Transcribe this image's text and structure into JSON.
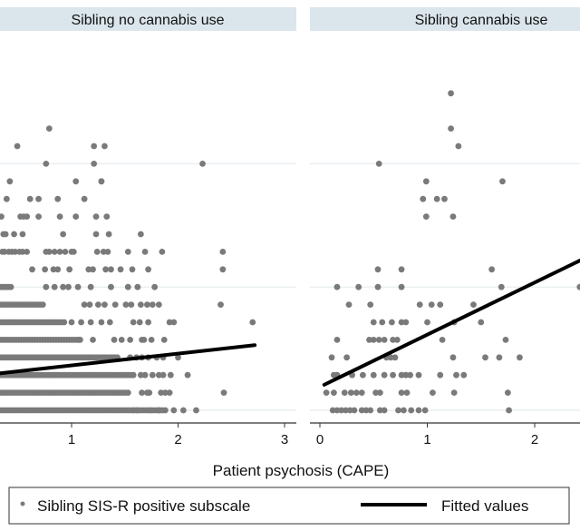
{
  "chart_data": {
    "type": "scatter",
    "xlabel": "Patient psychosis (CAPE)",
    "ylabel": "",
    "y_units_note": "y values are discrete score levels (row index, 0 = bottom gridline); y-axis tick labels are not visible",
    "grid": "horizontal",
    "legend": {
      "placement": "bottom",
      "entries": [
        {
          "label": "Sibling SIS-R positive subscale",
          "marker": "point",
          "color": "#7a7a7a"
        },
        {
          "label": "Fitted values",
          "marker": "line",
          "color": "#000000"
        }
      ]
    },
    "colors": {
      "points": "#7a7a7a",
      "fit": "#000000",
      "strip_bg": "#dbe5ec",
      "grid": "#e4ecef",
      "axis": "#333333"
    },
    "y_gridlines": [
      0,
      7,
      14
    ],
    "panels": [
      {
        "title": "Sibling no cannabis use",
        "xlim": [
          0.33,
          3.05
        ],
        "ylim": [
          -0.6,
          16.5
        ],
        "xticks": [
          1,
          2,
          3
        ],
        "xtick_labels": [
          "1",
          "2",
          "3"
        ],
        "fit": {
          "x": [
            0.33,
            2.72
          ],
          "y": [
            2.1,
            3.7
          ]
        },
        "dense_rows": [
          {
            "y": 0,
            "x_from": 0.33,
            "x_to": 1.9
          },
          {
            "y": 1,
            "x_from": 0.33,
            "x_to": 1.55
          },
          {
            "y": 2,
            "x_from": 0.33,
            "x_to": 1.6
          },
          {
            "y": 3,
            "x_from": 0.33,
            "x_to": 1.45
          },
          {
            "y": 4,
            "x_from": 0.33,
            "x_to": 1.1
          },
          {
            "y": 5,
            "x_from": 0.33,
            "x_to": 0.95
          },
          {
            "y": 6,
            "x_from": 0.33,
            "x_to": 0.75
          },
          {
            "y": 7,
            "x_from": 0.33,
            "x_to": 0.45
          }
        ],
        "points": [
          [
            2.05,
            0
          ],
          [
            2.17,
            0
          ],
          [
            1.62,
            0
          ],
          [
            1.82,
            0
          ],
          [
            1.73,
            0
          ],
          [
            1.96,
            0
          ],
          [
            1.58,
            0
          ],
          [
            2.43,
            1
          ],
          [
            1.73,
            1
          ],
          [
            1.84,
            1
          ],
          [
            1.92,
            1
          ],
          [
            1.88,
            1
          ],
          [
            1.66,
            1
          ],
          [
            1.71,
            1
          ],
          [
            1.93,
            2
          ],
          [
            1.86,
            2
          ],
          [
            1.82,
            2
          ],
          [
            1.76,
            2
          ],
          [
            1.69,
            2
          ],
          [
            1.65,
            2
          ],
          [
            2.09,
            2
          ],
          [
            2.0,
            3
          ],
          [
            1.72,
            3
          ],
          [
            1.8,
            3
          ],
          [
            1.86,
            3
          ],
          [
            1.55,
            3
          ],
          [
            1.61,
            3
          ],
          [
            1.66,
            3
          ],
          [
            1.07,
            4
          ],
          [
            1.2,
            4
          ],
          [
            1.4,
            4
          ],
          [
            1.47,
            4
          ],
          [
            1.55,
            4
          ],
          [
            1.66,
            4
          ],
          [
            1.68,
            4
          ],
          [
            1.75,
            4
          ],
          [
            1.87,
            4
          ],
          [
            1.58,
            5
          ],
          [
            1.64,
            5
          ],
          [
            1.72,
            5
          ],
          [
            1.28,
            5
          ],
          [
            1.36,
            5
          ],
          [
            1.18,
            5
          ],
          [
            1.09,
            5
          ],
          [
            1.0,
            5
          ],
          [
            1.96,
            5
          ],
          [
            1.92,
            5
          ],
          [
            2.7,
            5
          ],
          [
            1.12,
            6
          ],
          [
            1.17,
            6
          ],
          [
            1.25,
            6
          ],
          [
            1.31,
            6
          ],
          [
            1.41,
            6
          ],
          [
            1.51,
            6
          ],
          [
            1.56,
            6
          ],
          [
            1.65,
            6
          ],
          [
            1.71,
            6
          ],
          [
            1.76,
            6
          ],
          [
            1.82,
            6
          ],
          [
            2.4,
            6
          ],
          [
            0.76,
            7
          ],
          [
            0.84,
            7
          ],
          [
            0.92,
            7
          ],
          [
            0.97,
            7
          ],
          [
            1.06,
            7
          ],
          [
            1.18,
            7
          ],
          [
            1.37,
            7
          ],
          [
            1.53,
            7
          ],
          [
            1.62,
            7
          ],
          [
            1.78,
            7
          ],
          [
            0.63,
            8
          ],
          [
            0.75,
            8
          ],
          [
            0.83,
            8
          ],
          [
            0.87,
            8
          ],
          [
            0.98,
            8
          ],
          [
            1.16,
            8
          ],
          [
            1.2,
            8
          ],
          [
            1.32,
            8
          ],
          [
            1.37,
            8
          ],
          [
            1.46,
            8
          ],
          [
            1.57,
            8
          ],
          [
            1.72,
            8
          ],
          [
            2.42,
            8
          ],
          [
            0.35,
            9
          ],
          [
            0.37,
            9
          ],
          [
            0.41,
            9
          ],
          [
            0.44,
            9
          ],
          [
            0.47,
            9
          ],
          [
            0.51,
            9
          ],
          [
            0.54,
            9
          ],
          [
            0.58,
            9
          ],
          [
            0.76,
            9
          ],
          [
            0.79,
            9
          ],
          [
            0.84,
            9
          ],
          [
            0.89,
            9
          ],
          [
            0.94,
            9
          ],
          [
            1.0,
            9
          ],
          [
            1.02,
            9
          ],
          [
            1.24,
            9
          ],
          [
            1.3,
            9
          ],
          [
            1.34,
            9
          ],
          [
            1.53,
            9
          ],
          [
            1.69,
            9
          ],
          [
            1.85,
            9
          ],
          [
            2.42,
            9
          ],
          [
            0.36,
            10
          ],
          [
            0.38,
            10
          ],
          [
            0.46,
            10
          ],
          [
            0.54,
            10
          ],
          [
            0.92,
            10
          ],
          [
            1.23,
            10
          ],
          [
            1.35,
            10
          ],
          [
            1.65,
            10
          ],
          [
            0.34,
            11
          ],
          [
            0.52,
            11
          ],
          [
            0.55,
            11
          ],
          [
            0.58,
            11
          ],
          [
            0.69,
            11
          ],
          [
            0.89,
            11
          ],
          [
            1.04,
            11
          ],
          [
            1.23,
            11
          ],
          [
            1.33,
            11
          ],
          [
            0.39,
            12
          ],
          [
            0.61,
            12
          ],
          [
            0.69,
            12
          ],
          [
            0.87,
            12
          ],
          [
            1.12,
            12
          ],
          [
            0.42,
            13
          ],
          [
            1.04,
            13
          ],
          [
            1.28,
            13
          ],
          [
            1.28,
            13.0001
          ],
          [
            0.76,
            14
          ],
          [
            1.21,
            14
          ],
          [
            2.23,
            14
          ],
          [
            0.49,
            15
          ],
          [
            1.21,
            15
          ],
          [
            1.31,
            15
          ],
          [
            0.79,
            16
          ]
        ]
      },
      {
        "title": "Sibling cannabis use",
        "xlim": [
          -0.09,
          2.42
        ],
        "ylim": [
          -0.6,
          16.5
        ],
        "xticks": [
          0,
          1,
          2
        ],
        "xtick_labels": [
          "0",
          "1",
          "2"
        ],
        "fit": {
          "x": [
            0.04,
            2.42
          ],
          "y": [
            1.45,
            8.5
          ]
        },
        "points": [
          [
            0.12,
            0
          ],
          [
            0.16,
            0
          ],
          [
            0.2,
            0
          ],
          [
            0.24,
            0
          ],
          [
            0.28,
            0
          ],
          [
            0.32,
            0
          ],
          [
            0.39,
            0
          ],
          [
            0.43,
            0
          ],
          [
            0.47,
            0
          ],
          [
            0.56,
            0
          ],
          [
            0.6,
            0
          ],
          [
            0.73,
            0
          ],
          [
            0.78,
            0
          ],
          [
            0.85,
            0
          ],
          [
            0.92,
            0
          ],
          [
            0.98,
            0
          ],
          [
            1.76,
            0
          ],
          [
            0.06,
            1
          ],
          [
            0.13,
            1
          ],
          [
            0.23,
            1
          ],
          [
            0.29,
            1
          ],
          [
            0.34,
            1
          ],
          [
            0.39,
            1
          ],
          [
            0.52,
            1
          ],
          [
            0.56,
            1
          ],
          [
            0.76,
            1
          ],
          [
            0.81,
            1
          ],
          [
            1.05,
            1
          ],
          [
            1.25,
            1
          ],
          [
            1.75,
            1
          ],
          [
            0.13,
            2
          ],
          [
            0.16,
            2
          ],
          [
            0.3,
            2
          ],
          [
            0.4,
            2
          ],
          [
            0.5,
            2
          ],
          [
            0.6,
            2
          ],
          [
            0.68,
            2
          ],
          [
            0.76,
            2
          ],
          [
            0.8,
            2
          ],
          [
            0.84,
            2
          ],
          [
            0.92,
            2
          ],
          [
            1.12,
            2
          ],
          [
            1.27,
            2
          ],
          [
            1.34,
            2
          ],
          [
            0.11,
            3
          ],
          [
            0.25,
            3
          ],
          [
            0.62,
            3
          ],
          [
            0.66,
            3
          ],
          [
            0.7,
            3
          ],
          [
            1.24,
            3
          ],
          [
            1.54,
            3
          ],
          [
            1.67,
            3
          ],
          [
            1.86,
            3
          ],
          [
            0.16,
            4
          ],
          [
            0.46,
            4
          ],
          [
            0.5,
            4
          ],
          [
            0.55,
            4
          ],
          [
            0.6,
            4
          ],
          [
            0.68,
            4
          ],
          [
            0.72,
            4
          ],
          [
            1.14,
            4
          ],
          [
            1.73,
            4
          ],
          [
            0.5,
            5
          ],
          [
            0.58,
            5
          ],
          [
            0.67,
            5
          ],
          [
            0.76,
            5
          ],
          [
            0.8,
            5
          ],
          [
            1.0,
            5
          ],
          [
            1.25,
            5
          ],
          [
            1.5,
            5
          ],
          [
            0.27,
            6
          ],
          [
            0.47,
            6
          ],
          [
            0.93,
            6
          ],
          [
            1.04,
            6
          ],
          [
            1.12,
            6
          ],
          [
            1.43,
            6
          ],
          [
            0.16,
            7
          ],
          [
            0.36,
            7
          ],
          [
            0.54,
            7
          ],
          [
            0.76,
            7
          ],
          [
            1.69,
            7
          ],
          [
            2.42,
            7
          ],
          [
            0.54,
            8
          ],
          [
            0.76,
            8
          ],
          [
            1.6,
            8
          ],
          [
            0.99,
            11
          ],
          [
            1.24,
            11
          ],
          [
            0.96,
            12
          ],
          [
            1.09,
            12
          ],
          [
            1.16,
            12
          ],
          [
            0.99,
            13
          ],
          [
            1.7,
            13
          ],
          [
            0.55,
            14
          ],
          [
            1.29,
            15
          ],
          [
            1.22,
            16
          ],
          [
            1.22,
            18
          ]
        ]
      }
    ]
  }
}
